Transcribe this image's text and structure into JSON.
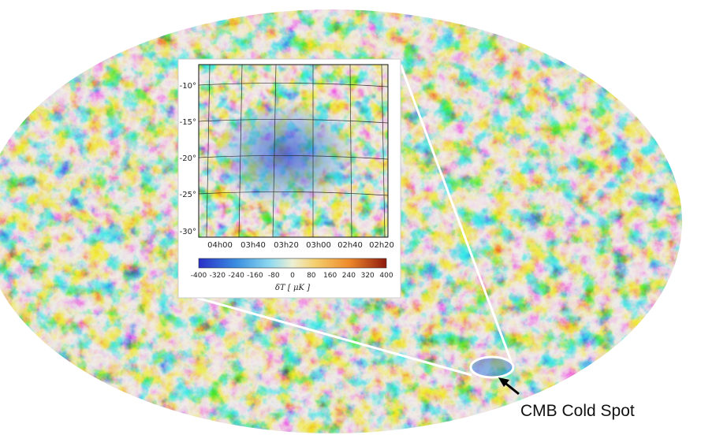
{
  "map": {
    "projection": "mollweide",
    "colors": {
      "deep_blue": "#2a3fd0",
      "blue": "#3a8ee0",
      "cyan": "#7fd6ea",
      "pale": "#e9eecb",
      "yellow": "#f3cf72",
      "orange": "#ee8a2c",
      "red": "#c43a16"
    }
  },
  "inset": {
    "dec_ticks": [
      "-10°",
      "-15°",
      "-20°",
      "-25°",
      "-30°"
    ],
    "ra_ticks": [
      "04h00",
      "03h40",
      "03h20",
      "03h00",
      "02h40",
      "02h20"
    ],
    "colorbar_ticks": [
      "-400",
      "-320",
      "-240",
      "-160",
      "-80",
      "0",
      "80",
      "160",
      "240",
      "320",
      "400"
    ],
    "colorbar_label": "δT [ μK ]",
    "colorbar_range": [
      -400,
      400
    ]
  },
  "callout": {
    "label": "CMB Cold Spot"
  }
}
